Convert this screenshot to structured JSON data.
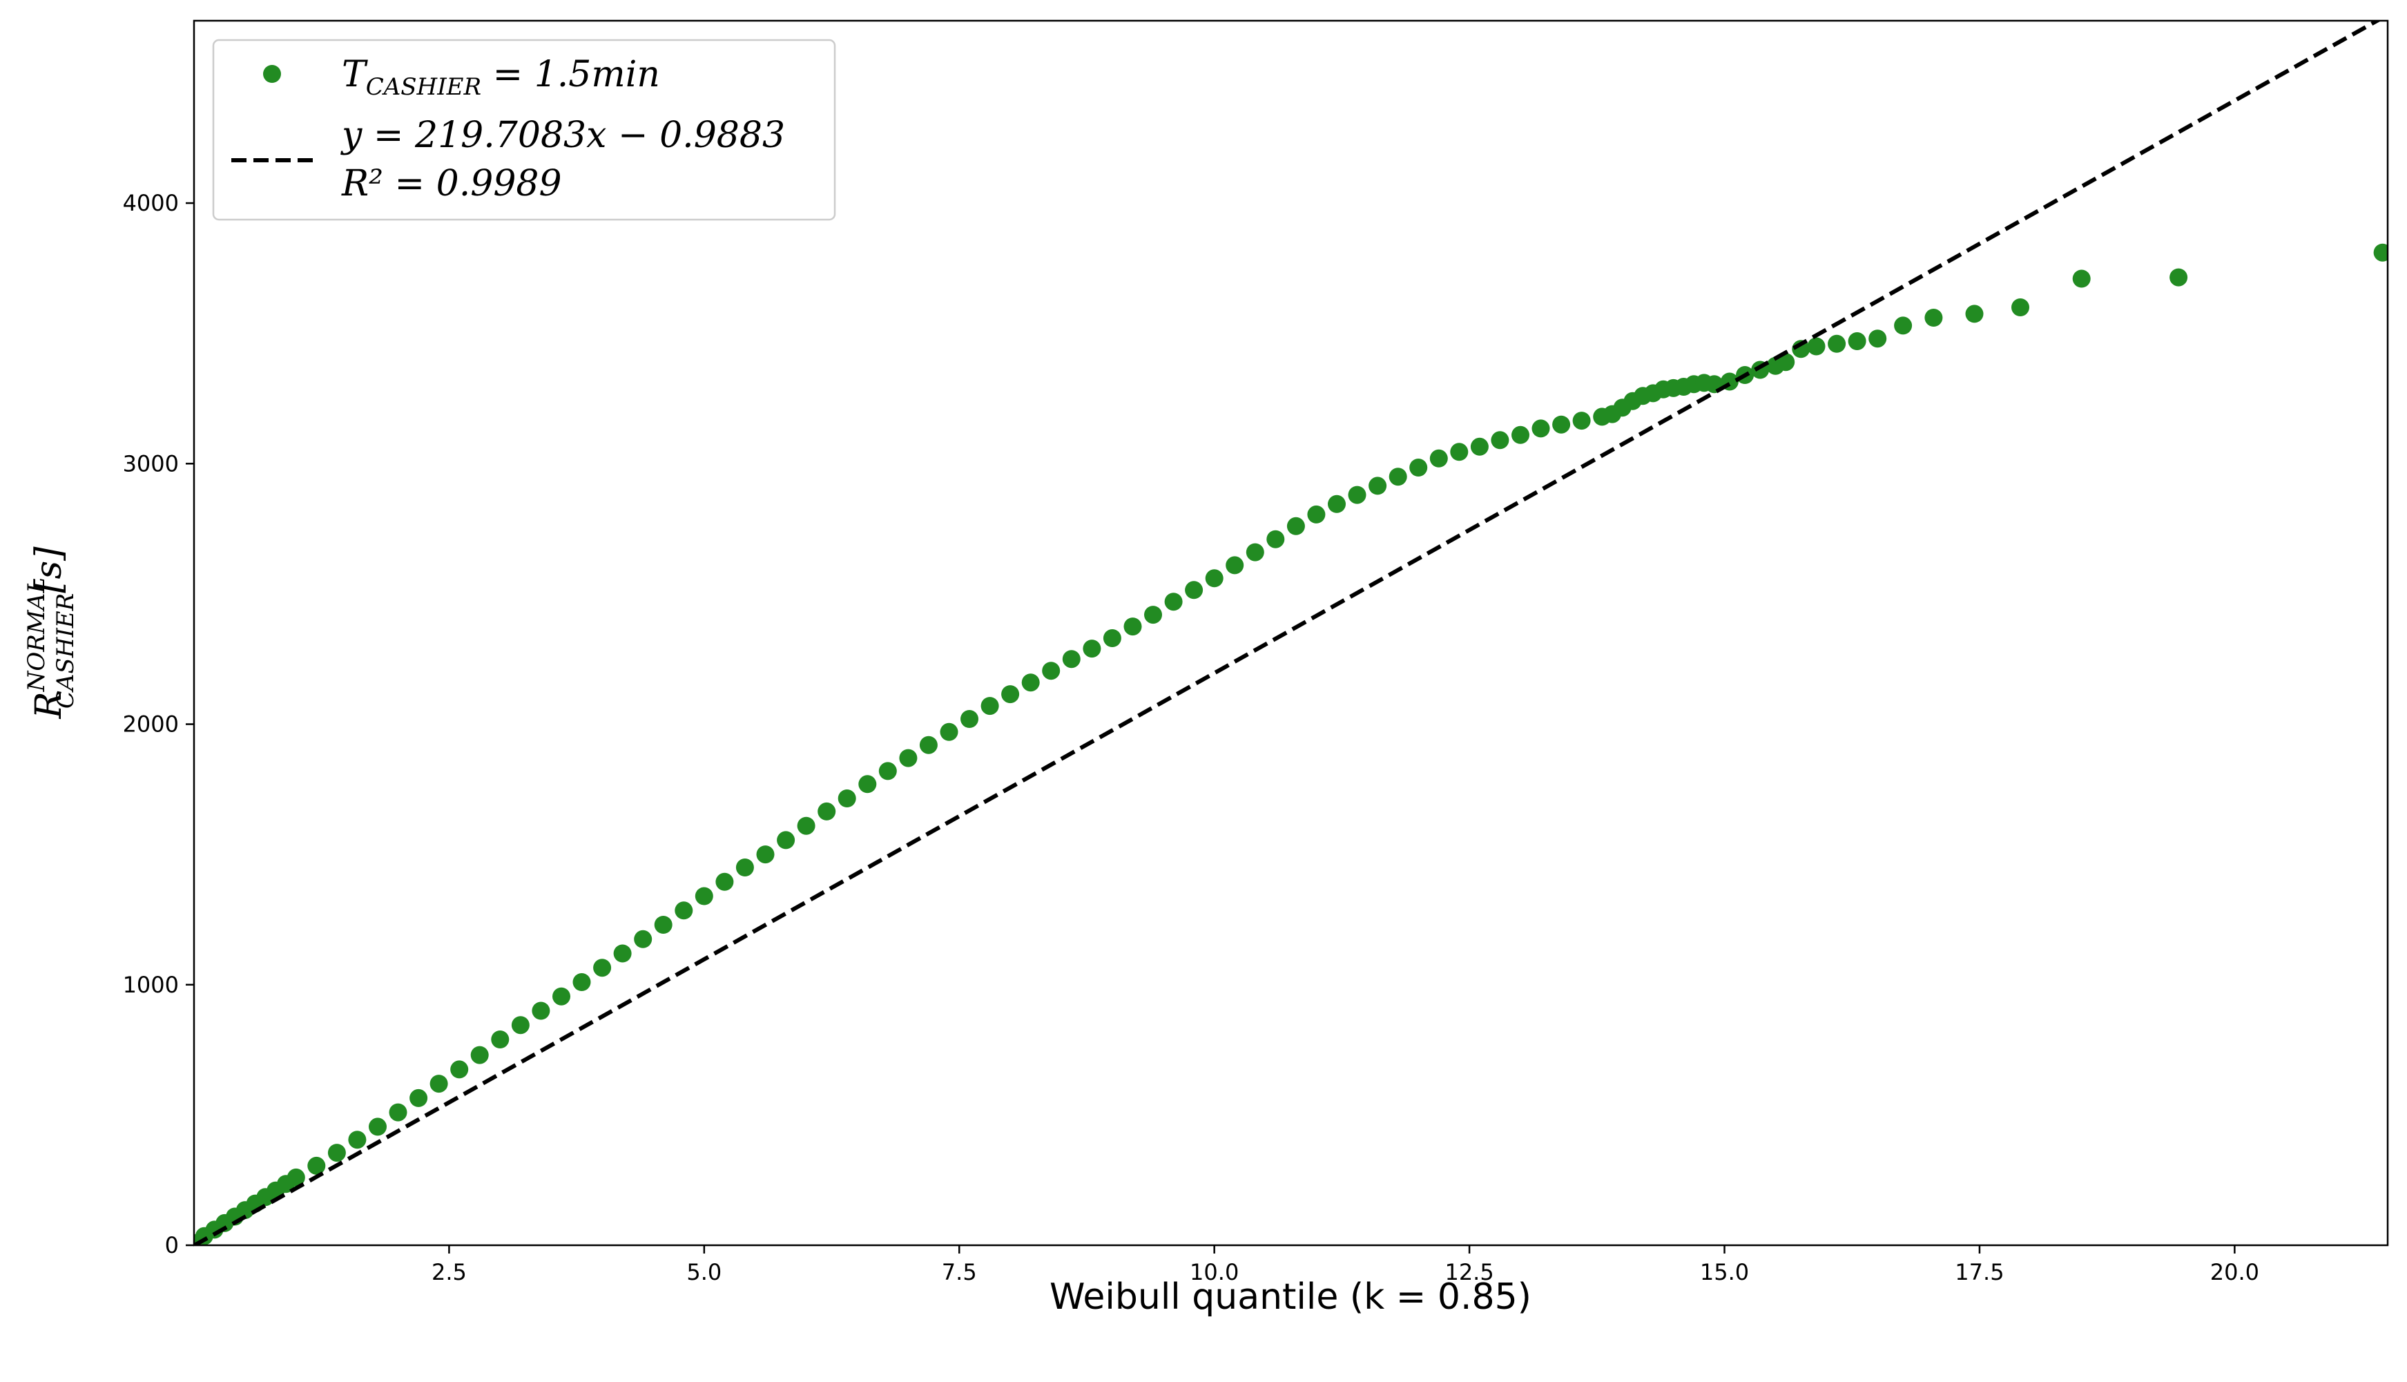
{
  "chart_data": {
    "type": "scatter",
    "xlabel": "Weibull quantile (k = 0.85)",
    "ylabel_base": "R",
    "ylabel_sup": "NORMAL",
    "ylabel_sub": "CASHIER",
    "ylabel_unit": "[s]",
    "xlim": [
      0,
      21.5
    ],
    "ylim": [
      0,
      4700
    ],
    "xticks": [
      2.5,
      5.0,
      7.5,
      10.0,
      12.5,
      15.0,
      17.5,
      20.0
    ],
    "xtick_labels": [
      "2.5",
      "5.0",
      "7.5",
      "10.0",
      "12.5",
      "15.0",
      "17.5",
      "20.0"
    ],
    "yticks": [
      0,
      1000,
      2000,
      3000,
      4000
    ],
    "ytick_labels": [
      "0",
      "1000",
      "2000",
      "3000",
      "4000"
    ],
    "grid": false,
    "legend_placement": "top-left",
    "colors": {
      "points": "#228B22",
      "fit": "#000000"
    },
    "series": [
      {
        "kind": "points",
        "legend_base": "T",
        "legend_sub": "CASHIER",
        "legend_rest": " = 1.5min",
        "x": [
          0.02,
          0.1,
          0.2,
          0.3,
          0.4,
          0.5,
          0.6,
          0.7,
          0.8,
          0.9,
          1.0,
          1.2,
          1.4,
          1.6,
          1.8,
          2.0,
          2.2,
          2.4,
          2.6,
          2.8,
          3.0,
          3.2,
          3.4,
          3.6,
          3.8,
          4.0,
          4.2,
          4.4,
          4.6,
          4.8,
          5.0,
          5.2,
          5.4,
          5.6,
          5.8,
          6.0,
          6.2,
          6.4,
          6.6,
          6.8,
          7.0,
          7.2,
          7.4,
          7.6,
          7.8,
          8.0,
          8.2,
          8.4,
          8.6,
          8.8,
          9.0,
          9.2,
          9.4,
          9.6,
          9.8,
          10.0,
          10.2,
          10.4,
          10.6,
          10.8,
          11.0,
          11.2,
          11.4,
          11.6,
          11.8,
          12.0,
          12.2,
          12.4,
          12.6,
          12.8,
          13.0,
          13.2,
          13.4,
          13.6,
          13.8,
          13.9,
          14.0,
          14.1,
          14.2,
          14.3,
          14.4,
          14.5,
          14.6,
          14.7,
          14.8,
          14.9,
          15.05,
          15.2,
          15.35,
          15.5,
          15.6,
          15.75,
          15.9,
          16.1,
          16.3,
          16.5,
          16.75,
          17.05,
          17.45,
          17.9,
          18.5,
          19.45,
          21.45
        ],
        "y": [
          8,
          35,
          60,
          85,
          110,
          135,
          160,
          185,
          210,
          235,
          260,
          305,
          355,
          405,
          455,
          510,
          565,
          620,
          675,
          730,
          790,
          845,
          900,
          955,
          1010,
          1065,
          1120,
          1175,
          1230,
          1285,
          1340,
          1395,
          1450,
          1500,
          1555,
          1610,
          1665,
          1715,
          1770,
          1820,
          1870,
          1920,
          1970,
          2020,
          2070,
          2115,
          2160,
          2205,
          2250,
          2290,
          2330,
          2375,
          2420,
          2470,
          2515,
          2560,
          2610,
          2660,
          2710,
          2760,
          2805,
          2845,
          2880,
          2915,
          2950,
          2985,
          3020,
          3045,
          3065,
          3090,
          3110,
          3135,
          3150,
          3165,
          3180,
          3190,
          3215,
          3240,
          3260,
          3270,
          3285,
          3290,
          3295,
          3305,
          3310,
          3305,
          3315,
          3340,
          3360,
          3375,
          3390,
          3440,
          3450,
          3460,
          3470,
          3480,
          3530,
          3560,
          3575,
          3600,
          3710,
          3715,
          3810
        ]
      },
      {
        "kind": "fit-line",
        "legend_label": "y = 219.7083x − 0.9883",
        "legend_r2": "R² = 0.9989",
        "slope": 219.7083,
        "intercept": -0.9883
      }
    ]
  }
}
